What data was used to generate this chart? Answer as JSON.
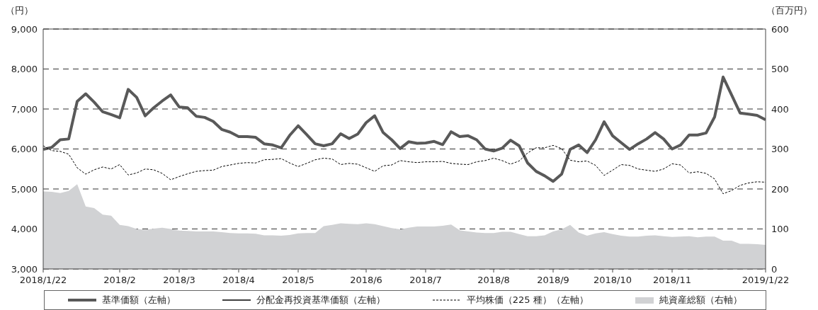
{
  "chart_data": {
    "type": "line",
    "ylabel": "（円）",
    "y2label": "（百万円）",
    "categories": [
      "2018/1/22",
      null,
      null,
      null,
      null,
      null,
      null,
      null,
      null,
      "2018/2",
      null,
      null,
      null,
      null,
      null,
      null,
      "2018/3",
      null,
      null,
      null,
      null,
      null,
      null,
      "2018/4",
      null,
      null,
      null,
      null,
      null,
      null,
      "2018/5",
      null,
      null,
      null,
      null,
      null,
      null,
      null,
      "2018/6",
      null,
      null,
      null,
      null,
      null,
      null,
      "2018/7",
      null,
      null,
      null,
      null,
      null,
      null,
      null,
      "2018/8",
      null,
      null,
      null,
      null,
      null,
      null,
      "2018/9",
      null,
      null,
      null,
      null,
      null,
      null,
      "2018/10",
      null,
      null,
      null,
      null,
      null,
      null,
      "2018/11",
      null,
      null,
      null,
      null,
      null,
      null,
      null,
      null,
      null,
      null,
      "2019/1/22"
    ],
    "series": [
      {
        "name": "基準価額（左軸）",
        "color": "#595959",
        "values": [
          5990,
          6040,
          6230,
          6250,
          7190,
          7380,
          7170,
          6930,
          6860,
          6780,
          7490,
          7290,
          6830,
          7030,
          7200,
          7350,
          7050,
          7030,
          6820,
          6790,
          6690,
          6490,
          6420,
          6310,
          6310,
          6290,
          6130,
          6100,
          6030,
          6340,
          6580,
          6360,
          6130,
          6080,
          6130,
          6380,
          6260,
          6370,
          6660,
          6830,
          6410,
          6230,
          6010,
          6180,
          6140,
          6150,
          6190,
          6110,
          6430,
          6310,
          6330,
          6230,
          6000,
          5950,
          6020,
          6220,
          6080,
          5650,
          5440,
          5330,
          5190,
          5370,
          5990,
          6100,
          5910,
          6230,
          6680,
          6330,
          6160,
          5990,
          6130,
          6250,
          6410,
          6250,
          6000,
          6100,
          6350,
          6350,
          6400,
          6800,
          7800,
          7350,
          6900,
          6870,
          6840,
          6730
        ]
      },
      {
        "name": "分配金再投資基準価額（左軸）",
        "color": "#000000",
        "values": [
          null,
          null,
          null,
          null,
          null,
          null,
          null,
          null,
          null,
          null,
          null,
          null,
          null,
          null,
          null,
          null,
          null,
          null,
          null,
          null,
          null,
          null,
          null,
          null,
          null,
          null,
          null,
          null,
          null,
          null,
          null,
          null,
          null,
          null,
          null,
          null,
          null,
          null,
          null,
          null,
          null,
          null,
          null,
          null,
          null,
          null,
          null,
          null,
          null,
          null,
          null,
          null,
          null,
          null,
          null,
          null,
          null,
          null,
          null,
          null,
          null,
          null,
          null,
          null,
          null,
          null,
          null,
          null,
          null,
          null,
          null,
          null,
          null,
          null,
          null,
          null,
          null,
          null,
          null,
          null,
          null,
          null,
          null,
          null,
          null,
          null
        ]
      },
      {
        "name": "平均株価（225 種）（左軸）",
        "line_style": "dashed",
        "color": "#000000",
        "values": [
          6080,
          5960,
          5940,
          5870,
          5530,
          5370,
          5480,
          5550,
          5500,
          5610,
          5350,
          5400,
          5500,
          5480,
          5390,
          5230,
          5310,
          5380,
          5440,
          5460,
          5470,
          5560,
          5600,
          5640,
          5660,
          5650,
          5730,
          5740,
          5760,
          5650,
          5560,
          5640,
          5730,
          5770,
          5750,
          5610,
          5640,
          5620,
          5530,
          5440,
          5580,
          5600,
          5710,
          5680,
          5660,
          5680,
          5680,
          5690,
          5640,
          5620,
          5610,
          5680,
          5710,
          5770,
          5710,
          5620,
          5700,
          5900,
          6030,
          6030,
          6090,
          6010,
          5720,
          5680,
          5700,
          5590,
          5340,
          5470,
          5610,
          5590,
          5500,
          5470,
          5440,
          5500,
          5630,
          5600,
          5400,
          5430,
          5390,
          5250,
          4880,
          4960,
          5090,
          5150,
          5180,
          5170
        ]
      },
      {
        "name": "純資産総額（右軸）",
        "type": "area",
        "axis": "y2",
        "color": "#d1d2d4",
        "values": [
          194,
          193,
          190,
          195,
          212,
          156,
          152,
          136,
          133,
          110,
          107,
          100,
          98,
          101,
          103,
          100,
          96,
          95,
          94,
          94,
          94,
          92,
          90,
          89,
          89,
          88,
          84,
          84,
          83,
          85,
          89,
          90,
          90,
          107,
          110,
          114,
          113,
          112,
          114,
          112,
          107,
          102,
          99,
          103,
          106,
          106,
          106,
          108,
          111,
          97,
          94,
          91,
          90,
          90,
          93,
          93,
          87,
          82,
          82,
          84,
          94,
          99,
          110,
          91,
          83,
          89,
          92,
          87,
          83,
          81,
          81,
          83,
          84,
          82,
          80,
          81,
          82,
          79,
          81,
          81,
          71,
          71,
          63,
          63,
          62,
          60
        ]
      }
    ],
    "ylim": [
      3000,
      9000
    ],
    "yticks": [
      {
        "value": 3000,
        "label": "3,000"
      },
      {
        "value": 4000,
        "label": "4,000"
      },
      {
        "value": 5000,
        "label": "5,000"
      },
      {
        "value": 6000,
        "label": "6,000"
      },
      {
        "value": 7000,
        "label": "7,000"
      },
      {
        "value": 8000,
        "label": "8,000"
      },
      {
        "value": 9000,
        "label": "9,000"
      }
    ],
    "y2lim": [
      0,
      600
    ],
    "y2ticks": [
      0,
      100,
      200,
      300,
      400,
      500,
      600
    ],
    "grid": "y",
    "legend": "bottom"
  }
}
